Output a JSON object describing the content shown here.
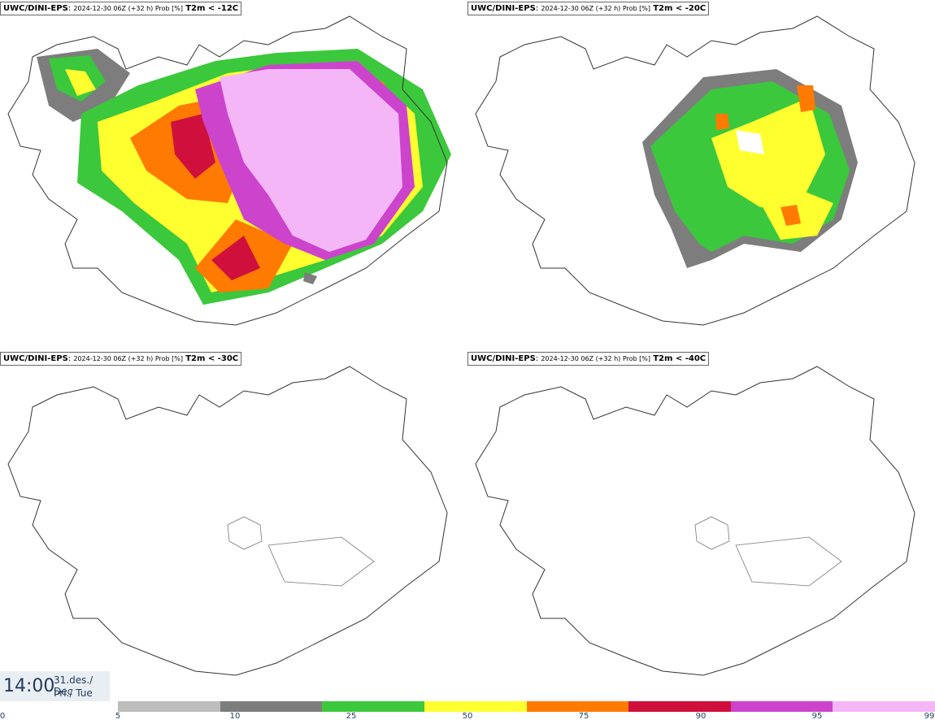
{
  "panels": [
    {
      "model": "UWC/DINI-EPS",
      "run": "2024-12-30 06Z (+32 h) Prob [%]",
      "threshold": "T2m < -12C"
    },
    {
      "model": "UWC/DINI-EPS",
      "run": "2024-12-30 06Z (+32 h) Prob [%]",
      "threshold": "T2m < -20C"
    },
    {
      "model": "UWC/DINI-EPS",
      "run": "2024-12-30 06Z (+32 h) Prob [%]",
      "threshold": "T2m < -30C"
    },
    {
      "model": "UWC/DINI-EPS",
      "run": "2024-12-30 06Z (+32 h) Prob [%]",
      "threshold": "T2m < -40C"
    }
  ],
  "time": {
    "clock": "14:00",
    "date_line": "31.des./ Dec",
    "day_line": "Þri./ Tue"
  },
  "legend": {
    "ticks": [
      "0",
      "5",
      "10",
      "25",
      "50",
      "75",
      "90",
      "95",
      "99"
    ],
    "colors": [
      "#ffffff",
      "#bdbdbd",
      "#7d7d7d",
      "#3cc83c",
      "#ffff30",
      "#ff7a00",
      "#d0103c",
      "#cc44cc",
      "#f5b6f7"
    ]
  }
}
